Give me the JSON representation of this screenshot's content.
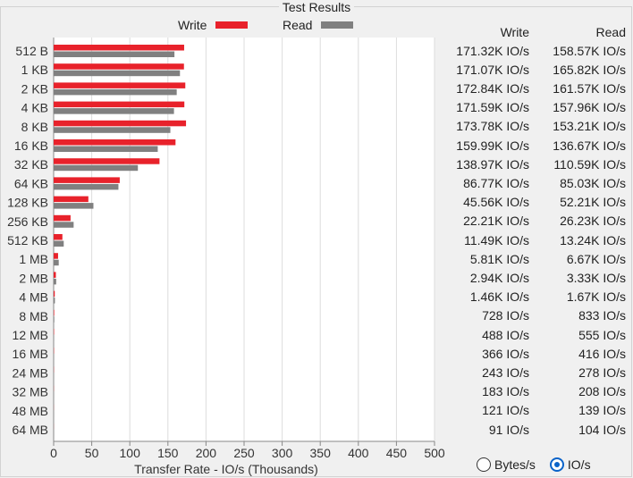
{
  "title": "Test Results",
  "legend": {
    "write_label": "Write",
    "read_label": "Read"
  },
  "colors": {
    "write": "#e8222b",
    "read": "#808080"
  },
  "columns": {
    "write": "Write",
    "read": "Read"
  },
  "units": {
    "bytes_label": "Bytes/s",
    "ios_label": "IO/s",
    "selected": "IO/s"
  },
  "rows": [
    {
      "size": "512 B",
      "write": "171.32K IO/s",
      "read": "158.57K IO/s"
    },
    {
      "size": "1 KB",
      "write": "171.07K IO/s",
      "read": "165.82K IO/s"
    },
    {
      "size": "2 KB",
      "write": "172.84K IO/s",
      "read": "161.57K IO/s"
    },
    {
      "size": "4 KB",
      "write": "171.59K IO/s",
      "read": "157.96K IO/s"
    },
    {
      "size": "8 KB",
      "write": "173.78K IO/s",
      "read": "153.21K IO/s"
    },
    {
      "size": "16 KB",
      "write": "159.99K IO/s",
      "read": "136.67K IO/s"
    },
    {
      "size": "32 KB",
      "write": "138.97K IO/s",
      "read": "110.59K IO/s"
    },
    {
      "size": "64 KB",
      "write": "86.77K IO/s",
      "read": "85.03K IO/s"
    },
    {
      "size": "128 KB",
      "write": "45.56K IO/s",
      "read": "52.21K IO/s"
    },
    {
      "size": "256 KB",
      "write": "22.21K IO/s",
      "read": "26.23K IO/s"
    },
    {
      "size": "512 KB",
      "write": "11.49K IO/s",
      "read": "13.24K IO/s"
    },
    {
      "size": "1 MB",
      "write": "5.81K IO/s",
      "read": "6.67K IO/s"
    },
    {
      "size": "2 MB",
      "write": "2.94K IO/s",
      "read": "3.33K IO/s"
    },
    {
      "size": "4 MB",
      "write": "1.46K IO/s",
      "read": "1.67K IO/s"
    },
    {
      "size": "8 MB",
      "write": "728 IO/s",
      "read": "833 IO/s"
    },
    {
      "size": "12 MB",
      "write": "488 IO/s",
      "read": "555 IO/s"
    },
    {
      "size": "16 MB",
      "write": "366 IO/s",
      "read": "416 IO/s"
    },
    {
      "size": "24 MB",
      "write": "243 IO/s",
      "read": "278 IO/s"
    },
    {
      "size": "32 MB",
      "write": "183 IO/s",
      "read": "208 IO/s"
    },
    {
      "size": "48 MB",
      "write": "121 IO/s",
      "read": "139 IO/s"
    },
    {
      "size": "64 MB",
      "write": "91 IO/s",
      "read": "104 IO/s"
    }
  ],
  "chart_data": {
    "type": "bar",
    "orientation": "horizontal",
    "title": "Test Results",
    "xlabel": "Transfer Rate - IO/s (Thousands)",
    "ylabel": "",
    "xlim": [
      0,
      500
    ],
    "xticks": [
      0,
      50,
      100,
      150,
      200,
      250,
      300,
      350,
      400,
      450,
      500
    ],
    "grid": true,
    "legend_position": "top",
    "categories": [
      "512 B",
      "1 KB",
      "2 KB",
      "4 KB",
      "8 KB",
      "16 KB",
      "32 KB",
      "64 KB",
      "128 KB",
      "256 KB",
      "512 KB",
      "1 MB",
      "2 MB",
      "4 MB",
      "8 MB",
      "12 MB",
      "16 MB",
      "24 MB",
      "32 MB",
      "48 MB",
      "64 MB"
    ],
    "series": [
      {
        "name": "Write",
        "color": "#e8222b",
        "values": [
          171.32,
          171.07,
          172.84,
          171.59,
          173.78,
          159.99,
          138.97,
          86.77,
          45.56,
          22.21,
          11.49,
          5.81,
          2.94,
          1.46,
          0.728,
          0.488,
          0.366,
          0.243,
          0.183,
          0.121,
          0.091
        ]
      },
      {
        "name": "Read",
        "color": "#808080",
        "values": [
          158.57,
          165.82,
          161.57,
          157.96,
          153.21,
          136.67,
          110.59,
          85.03,
          52.21,
          26.23,
          13.24,
          6.67,
          3.33,
          1.67,
          0.833,
          0.555,
          0.416,
          0.278,
          0.208,
          0.139,
          0.104
        ]
      }
    ]
  }
}
